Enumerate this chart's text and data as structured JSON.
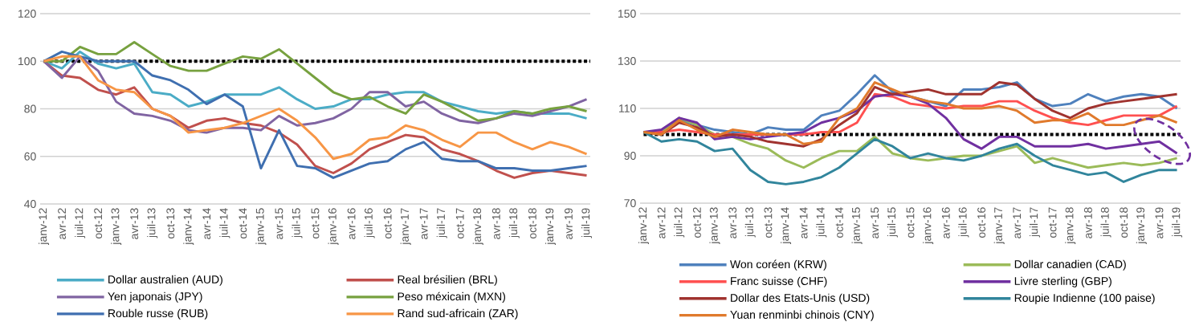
{
  "chart_data": [
    {
      "type": "line",
      "categories": [
        "janv-12",
        "avr-12",
        "juil-12",
        "oct-12",
        "janv-13",
        "avr-13",
        "juil-13",
        "oct-13",
        "janv-14",
        "avr-14",
        "juil-14",
        "oct-14",
        "janv-15",
        "avr-15",
        "juil-15",
        "oct-15",
        "janv-16",
        "avr-16",
        "juil-16",
        "oct-16",
        "janv-17",
        "avr-17",
        "juil-17",
        "oct-17",
        "janv-18",
        "avr-18",
        "juil-18",
        "oct-18",
        "janv-19",
        "avr-19",
        "juil-19"
      ],
      "series": [
        {
          "name": "Dollar australien (AUD)",
          "color": "#4bacc6",
          "values": [
            100,
            97,
            104,
            99,
            97,
            99,
            87,
            86,
            81,
            83,
            86,
            86,
            86,
            89,
            84,
            80,
            81,
            84,
            84,
            86,
            87,
            87,
            83,
            81,
            79,
            78,
            79,
            78,
            78,
            78,
            76
          ]
        },
        {
          "name": "Real brésilien (BRL)",
          "color": "#c0504d",
          "values": [
            100,
            94,
            93,
            88,
            86,
            89,
            80,
            77,
            72,
            75,
            76,
            74,
            73,
            70,
            65,
            56,
            53,
            57,
            63,
            66,
            69,
            68,
            63,
            61,
            58,
            54,
            51,
            53,
            54,
            53,
            52
          ]
        },
        {
          "name": "Yen japonais (JPY)",
          "color": "#8064a2",
          "values": [
            100,
            93,
            102,
            96,
            83,
            78,
            77,
            75,
            71,
            70,
            72,
            72,
            71,
            77,
            73,
            74,
            76,
            80,
            87,
            87,
            81,
            83,
            78,
            75,
            74,
            76,
            78,
            77,
            79,
            81,
            84
          ]
        },
        {
          "name": "Peso méxicain (MXN)",
          "color": "#77a13f",
          "values": [
            100,
            100,
            106,
            103,
            103,
            108,
            103,
            98,
            96,
            96,
            99,
            102,
            101,
            105,
            99,
            93,
            87,
            84,
            85,
            81,
            78,
            86,
            83,
            79,
            75,
            76,
            79,
            78,
            80,
            81,
            79
          ]
        },
        {
          "name": "Rouble russe (RUB)",
          "color": "#3f6fb0",
          "values": [
            100,
            104,
            102,
            100,
            100,
            100,
            94,
            92,
            88,
            82,
            86,
            81,
            55,
            71,
            56,
            55,
            51,
            54,
            57,
            58,
            63,
            66,
            59,
            58,
            58,
            55,
            55,
            54,
            54,
            55,
            56
          ]
        },
        {
          "name": "Rand sud-africain (ZAR)",
          "color": "#f79646",
          "values": [
            100,
            102,
            102,
            92,
            88,
            87,
            80,
            77,
            70,
            71,
            72,
            74,
            77,
            80,
            75,
            68,
            59,
            61,
            67,
            68,
            73,
            71,
            67,
            64,
            70,
            70,
            66,
            63,
            66,
            64,
            61
          ]
        }
      ],
      "ylim": [
        40,
        120
      ],
      "yticks": [
        40,
        60,
        80,
        100,
        120
      ],
      "grid": "y",
      "legend": "bottom",
      "ref_lines": [
        {
          "axis": "y",
          "value": 100,
          "color": "#000000",
          "line_style": "dotted"
        }
      ]
    },
    {
      "type": "line",
      "categories": [
        "janv-12",
        "avr-12",
        "juil-12",
        "oct-12",
        "janv-13",
        "avr-13",
        "juil-13",
        "oct-13",
        "janv-14",
        "avr-14",
        "juil-14",
        "oct-14",
        "janv-15",
        "avr-15",
        "juil-15",
        "oct-15",
        "janv-16",
        "avr-16",
        "juil-16",
        "oct-16",
        "janv-17",
        "avr-17",
        "juil-17",
        "oct-17",
        "janv-18",
        "avr-18",
        "juil-18",
        "oct-18",
        "janv-19",
        "avr-19",
        "juil-19"
      ],
      "series": [
        {
          "name": "Won coréen (KRW)",
          "color": "#4f81bd",
          "values": [
            100,
            100,
            105,
            103,
            101,
            100,
            99,
            102,
            101,
            101,
            107,
            109,
            116,
            124,
            117,
            115,
            113,
            111,
            118,
            118,
            119,
            121,
            114,
            111,
            112,
            116,
            113,
            115,
            116,
            115,
            110
          ]
        },
        {
          "name": "Dollar canadien (CAD)",
          "color": "#9bbb59",
          "values": [
            100,
            100,
            106,
            103,
            99,
            98,
            95,
            93,
            88,
            85,
            89,
            92,
            92,
            98,
            91,
            89,
            88,
            89,
            90,
            90,
            92,
            94,
            87,
            89,
            87,
            85,
            86,
            87,
            86,
            87,
            89
          ]
        },
        {
          "name": "Franc suisse (CHF)",
          "color": "#ff5050",
          "values": [
            100,
            100,
            101,
            100,
            99,
            99,
            99,
            99,
            99,
            99,
            100,
            100,
            104,
            116,
            115,
            112,
            111,
            110,
            111,
            111,
            113,
            113,
            109,
            106,
            104,
            103,
            105,
            107,
            107,
            107,
            111
          ]
        },
        {
          "name": "Livre sterling (GBP)",
          "color": "#7030a0",
          "values": [
            100,
            101,
            106,
            104,
            97,
            98,
            97,
            98,
            99,
            100,
            104,
            106,
            109,
            115,
            116,
            115,
            112,
            106,
            97,
            93,
            98,
            98,
            94,
            94,
            94,
            95,
            93,
            94,
            95,
            96,
            91
          ]
        },
        {
          "name": "Dollar des Etats-Unis (USD)",
          "color": "#a0332f",
          "values": [
            100,
            99,
            104,
            102,
            98,
            99,
            98,
            96,
            95,
            94,
            97,
            103,
            108,
            119,
            116,
            117,
            118,
            116,
            116,
            116,
            121,
            120,
            114,
            109,
            106,
            110,
            112,
            113,
            114,
            115,
            116
          ]
        },
        {
          "name": "Roupie Indienne (100 paise)",
          "color": "#31859c",
          "values": [
            100,
            96,
            97,
            96,
            92,
            93,
            84,
            79,
            78,
            79,
            81,
            85,
            91,
            97,
            94,
            89,
            91,
            89,
            88,
            90,
            93,
            95,
            90,
            86,
            84,
            82,
            83,
            79,
            82,
            84,
            84
          ]
        },
        {
          "name": "Yuan renminbi chinois (CNY)",
          "color": "#e07a2c",
          "values": [
            100,
            99,
            105,
            101,
            98,
            101,
            100,
            99,
            99,
            95,
            96,
            106,
            110,
            121,
            118,
            115,
            113,
            112,
            110,
            110,
            111,
            109,
            104,
            105,
            105,
            108,
            103,
            103,
            105,
            107,
            104
          ]
        }
      ],
      "ylim": [
        70,
        150
      ],
      "yticks": [
        70,
        90,
        110,
        130,
        150
      ],
      "grid": "y",
      "legend": "bottom",
      "ref_lines": [
        {
          "axis": "y",
          "value": 99,
          "color": "#000000",
          "line_style": "dotted"
        }
      ]
    }
  ]
}
